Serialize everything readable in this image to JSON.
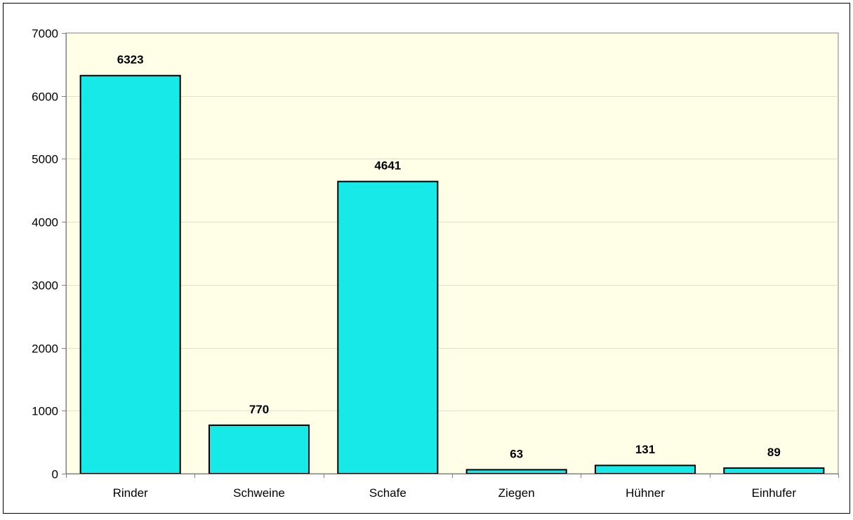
{
  "chart_data": {
    "type": "bar",
    "categories": [
      "Rinder",
      "Schweine",
      "Schafe",
      "Ziegen",
      "Hühner",
      "Einhufer"
    ],
    "values": [
      6323,
      770,
      4641,
      63,
      131,
      89
    ],
    "data_labels": [
      "6323",
      "770",
      "4641",
      "63",
      "131",
      "89"
    ],
    "title": "",
    "xlabel": "",
    "ylabel": "",
    "ylim": [
      0,
      7000
    ],
    "yticks": [
      0,
      1000,
      2000,
      3000,
      4000,
      5000,
      6000,
      7000
    ],
    "ytick_labels": [
      "0",
      "1000",
      "2000",
      "3000",
      "4000",
      "5000",
      "6000",
      "7000"
    ],
    "grid": true,
    "legend": "none",
    "colors": {
      "bar_fill": "#17E8E8",
      "bar_stroke": "#000000",
      "plot_background": "#FFFFE8",
      "gridline": "#E0E0C8",
      "axis": "#808080",
      "frame": "#000000"
    }
  }
}
